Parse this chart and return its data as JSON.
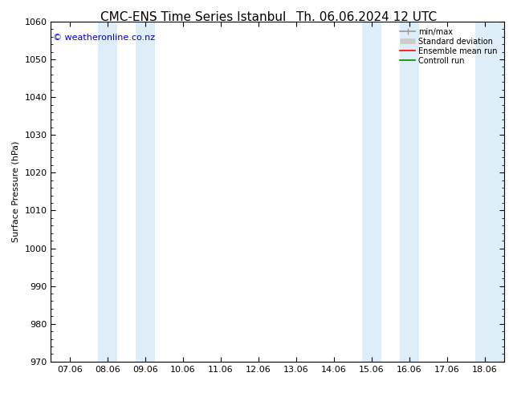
{
  "title": "CMC-ENS Time Series Istanbul",
  "title2": "Th. 06.06.2024 12 UTC",
  "xlabel": "",
  "ylabel": "Surface Pressure (hPa)",
  "ylim": [
    970,
    1060
  ],
  "yticks": [
    970,
    980,
    990,
    1000,
    1010,
    1020,
    1030,
    1040,
    1050,
    1060
  ],
  "x_labels": [
    "07.06",
    "08.06",
    "09.06",
    "10.06",
    "11.06",
    "12.06",
    "13.06",
    "14.06",
    "15.06",
    "16.06",
    "17.06",
    "18.06"
  ],
  "x_positions": [
    0,
    1,
    2,
    3,
    4,
    5,
    6,
    7,
    8,
    9,
    10,
    11
  ],
  "shaded_bands": [
    {
      "xmin": 0.75,
      "xmax": 1.25,
      "color": "#ddeef8"
    },
    {
      "xmin": 1.75,
      "xmax": 2.25,
      "color": "#ddeef8"
    },
    {
      "xmin": 7.75,
      "xmax": 8.25,
      "color": "#ddeef8"
    },
    {
      "xmin": 8.75,
      "xmax": 9.25,
      "color": "#ddeef8"
    },
    {
      "xmin": 10.75,
      "xmax": 11.55,
      "color": "#ddeef8"
    }
  ],
  "watermark": "© weatheronline.co.nz",
  "watermark_color": "#0000cc",
  "watermark_fontsize": 8,
  "legend_items": [
    {
      "label": "min/max",
      "color": "#999999",
      "lw": 1.2
    },
    {
      "label": "Standard deviation",
      "color": "#cccccc",
      "lw": 5
    },
    {
      "label": "Ensemble mean run",
      "color": "#ff0000",
      "lw": 1.2
    },
    {
      "label": "Controll run",
      "color": "#008800",
      "lw": 1.2
    }
  ],
  "title_fontsize": 11,
  "label_fontsize": 8,
  "tick_fontsize": 8,
  "background_color": "#ffffff",
  "plot_background": "#ffffff"
}
